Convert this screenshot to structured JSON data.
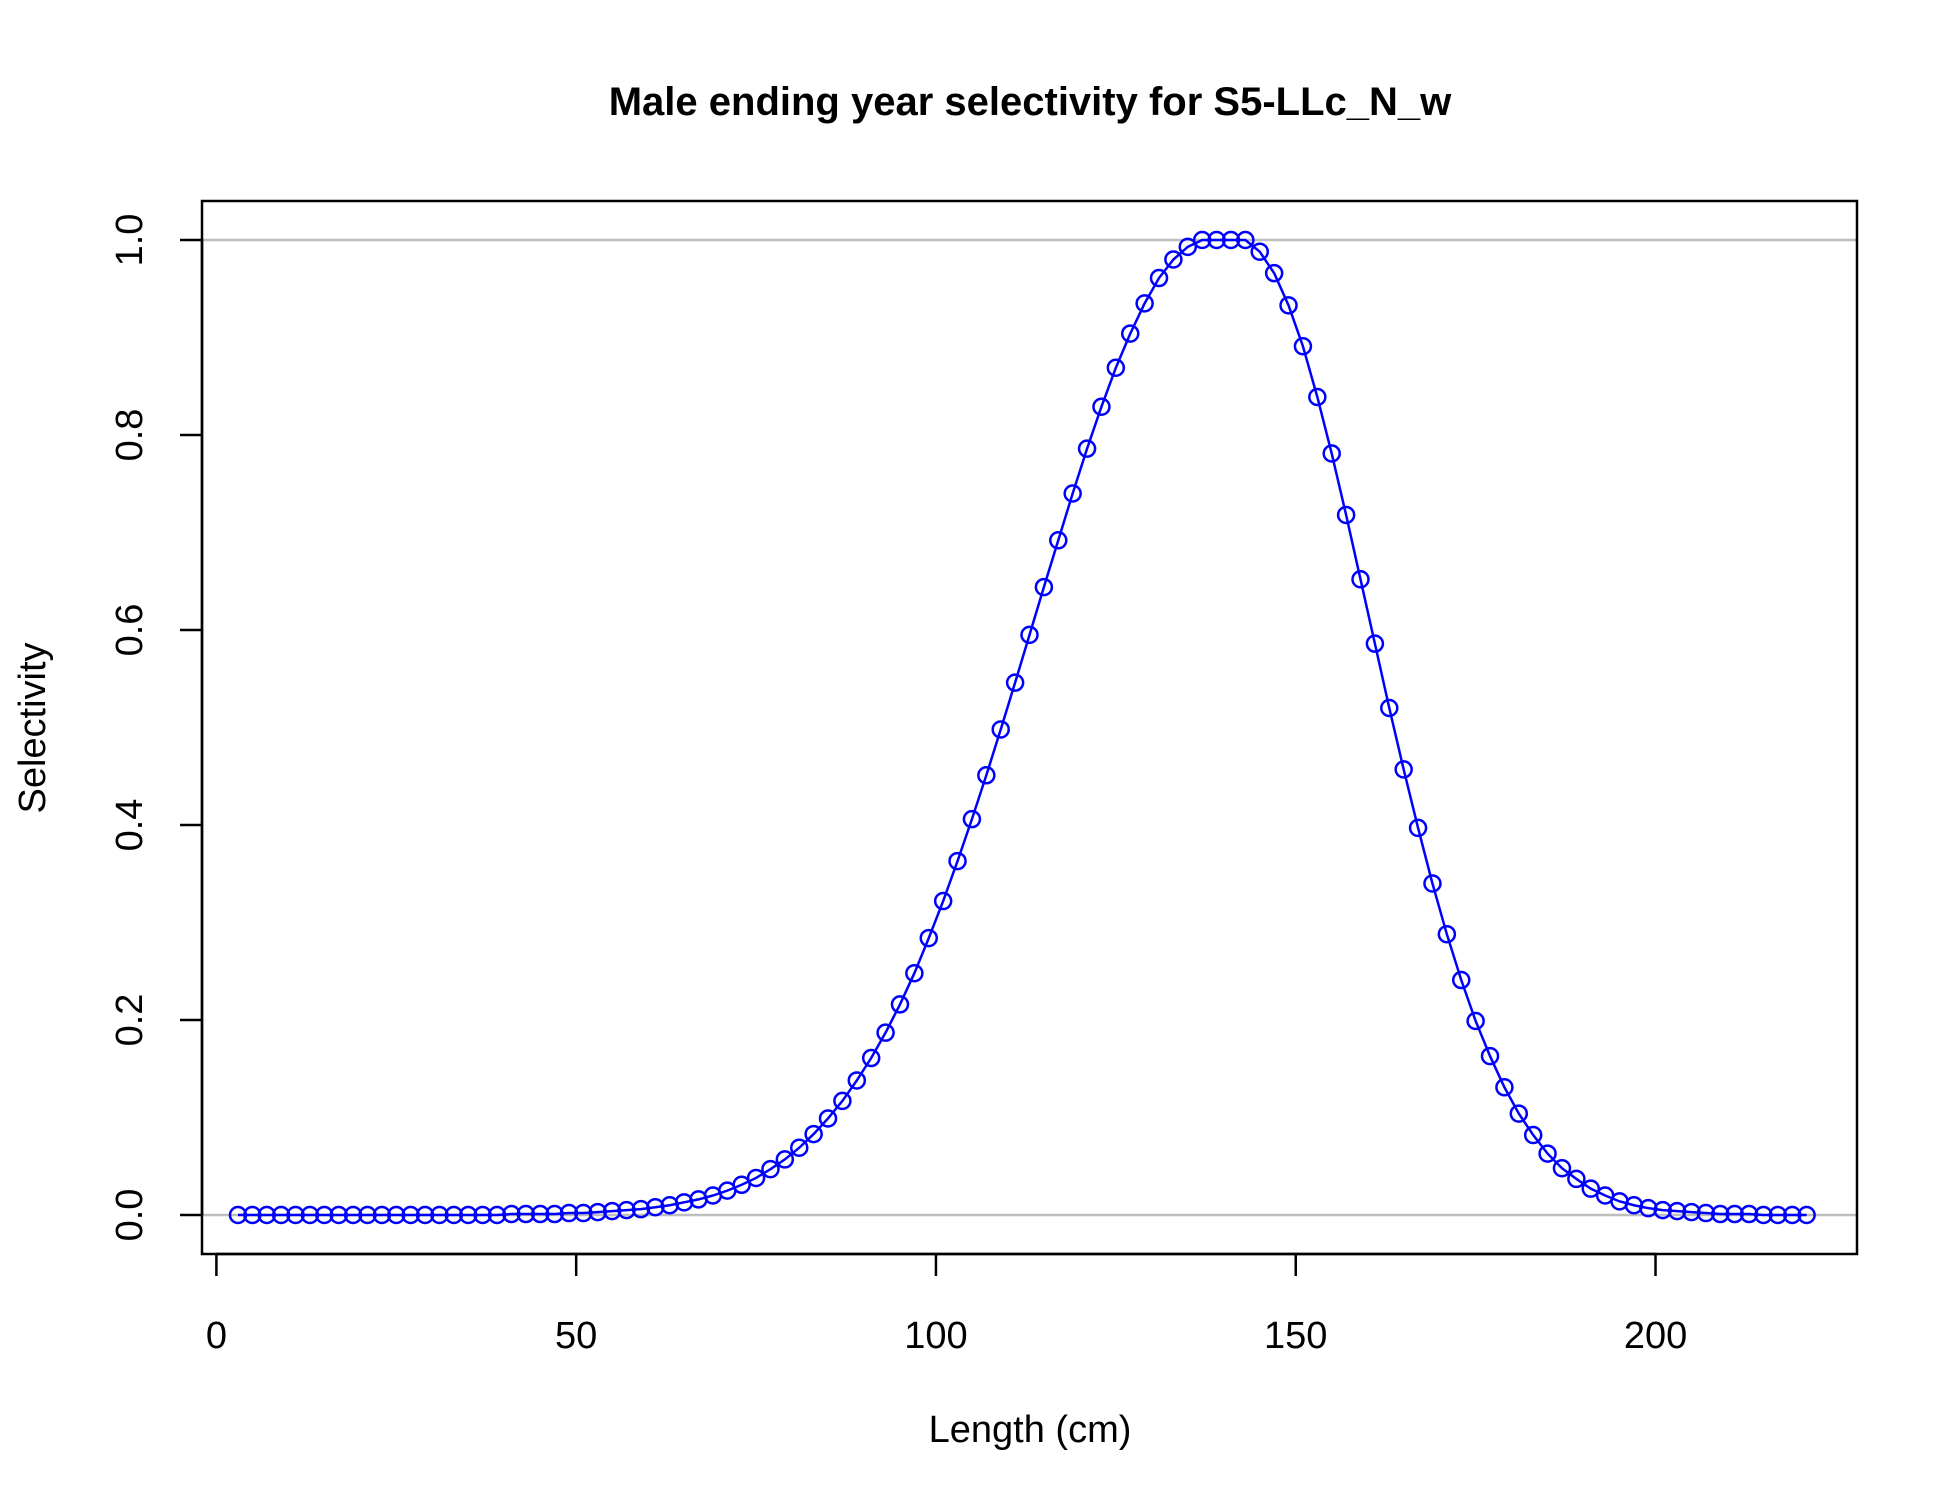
{
  "chart_data": {
    "type": "line",
    "title": "Male ending year selectivity for S5-LLc_N_w",
    "xlabel": "Length (cm)",
    "ylabel": "Selectivity",
    "xlim": [
      -2,
      228
    ],
    "ylim": [
      -0.04,
      1.04
    ],
    "x_ticks": [
      0,
      50,
      100,
      150,
      200
    ],
    "y_ticks": [
      0.0,
      0.2,
      0.4,
      0.6,
      0.8,
      1.0
    ],
    "x_tick_labels": [
      "0",
      "50",
      "100",
      "150",
      "200"
    ],
    "y_tick_labels": [
      "0.0",
      "0.2",
      "0.4",
      "0.6",
      "0.8",
      "1.0"
    ],
    "reference_lines": [
      0,
      1
    ],
    "reference_line_color": "#bebebe",
    "series_color": "#0000ff",
    "marker": "open-circle",
    "grid": false,
    "series": [
      {
        "x": [
          3,
          5,
          7,
          9,
          11,
          13,
          15,
          17,
          19,
          21,
          23,
          25,
          27,
          29,
          31,
          33,
          35,
          37,
          39,
          41,
          43,
          45,
          47,
          49,
          51,
          53,
          55,
          57,
          59,
          61,
          63,
          65,
          67,
          69,
          71,
          73,
          75,
          77,
          79,
          81,
          83,
          85,
          87,
          89,
          91,
          93,
          95,
          97,
          99,
          101,
          103,
          105,
          107,
          109,
          111,
          113,
          115,
          117,
          119,
          121,
          123,
          125,
          127,
          129,
          131,
          133,
          135,
          137,
          139,
          141,
          143,
          145,
          147,
          149,
          151,
          153,
          155,
          157,
          159,
          161,
          163,
          165,
          167,
          169,
          171,
          173,
          175,
          177,
          179,
          181,
          183,
          185,
          187,
          189,
          191,
          193,
          195,
          197,
          199,
          201,
          203,
          205,
          207,
          209,
          211,
          213,
          215,
          217,
          219,
          221
        ],
        "values": [
          0.0,
          0.0,
          0.0,
          0.0,
          0.0,
          0.0,
          0.0,
          0.0,
          0.0,
          0.0,
          0.0,
          0.0,
          0.0,
          0.0,
          0.0,
          0.0,
          0.0,
          0.0,
          0.0,
          0.001,
          0.001,
          0.001,
          0.001,
          0.002,
          0.002,
          0.003,
          0.004,
          0.005,
          0.006,
          0.008,
          0.01,
          0.013,
          0.016,
          0.02,
          0.025,
          0.031,
          0.038,
          0.047,
          0.057,
          0.069,
          0.083,
          0.099,
          0.117,
          0.138,
          0.161,
          0.187,
          0.216,
          0.248,
          0.284,
          0.322,
          0.363,
          0.406,
          0.451,
          0.498,
          0.546,
          0.595,
          0.644,
          0.692,
          0.74,
          0.786,
          0.829,
          0.869,
          0.904,
          0.935,
          0.961,
          0.98,
          0.993,
          1.0,
          1.0,
          1.0,
          1.0,
          0.988,
          0.966,
          0.933,
          0.891,
          0.839,
          0.781,
          0.718,
          0.652,
          0.586,
          0.52,
          0.457,
          0.397,
          0.34,
          0.288,
          0.241,
          0.199,
          0.163,
          0.131,
          0.104,
          0.082,
          0.063,
          0.048,
          0.037,
          0.027,
          0.02,
          0.014,
          0.01,
          0.007,
          0.005,
          0.004,
          0.003,
          0.002,
          0.001,
          0.001,
          0.001,
          0.0,
          0.0,
          0.0,
          0.0
        ]
      }
    ]
  }
}
